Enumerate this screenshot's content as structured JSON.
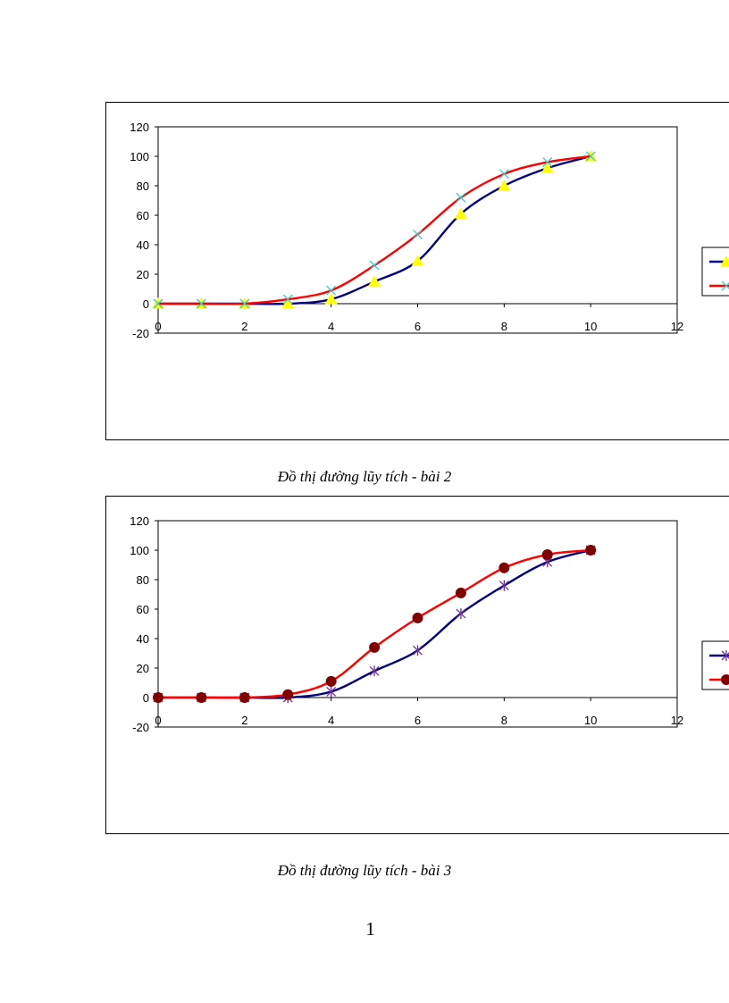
{
  "chart_data": [
    {
      "type": "line",
      "title": "",
      "caption": "Đồ thị đường lũy tích - bài 2",
      "xlabel": "",
      "ylabel": "",
      "xlim": [
        0,
        12
      ],
      "ylim": [
        -20,
        120
      ],
      "xticks": [
        "0",
        "2",
        "4",
        "6",
        "8",
        "10",
        "12"
      ],
      "yticks": [
        "-20",
        "0",
        "20",
        "40",
        "60",
        "80",
        "100",
        "120"
      ],
      "grid": false,
      "legend_position": "right (clipped)",
      "x": [
        0,
        1,
        2,
        3,
        4,
        5,
        6,
        7,
        8,
        9,
        10
      ],
      "series": [
        {
          "name": "",
          "color": "#000080",
          "marker": "triangle",
          "marker_color": "#ffff00",
          "values": [
            0,
            0,
            0,
            0,
            3,
            15,
            29,
            61,
            80,
            92,
            100
          ]
        },
        {
          "name": "",
          "color": "#ff0000",
          "marker": "x",
          "marker_color": "#33cccc",
          "values": [
            0,
            0,
            0,
            3,
            9,
            26,
            47,
            72,
            88,
            96,
            100
          ]
        }
      ]
    },
    {
      "type": "line",
      "title": "",
      "caption": "Đồ thị đường lũy tích - bài 3",
      "xlabel": "",
      "ylabel": "",
      "xlim": [
        0,
        12
      ],
      "ylim": [
        -20,
        120
      ],
      "xticks": [
        "0",
        "2",
        "4",
        "6",
        "8",
        "10",
        "12"
      ],
      "yticks": [
        "-20",
        "0",
        "20",
        "40",
        "60",
        "80",
        "100",
        "120"
      ],
      "grid": false,
      "legend_position": "right (clipped)",
      "x": [
        0,
        1,
        2,
        3,
        4,
        5,
        6,
        7,
        8,
        9,
        10
      ],
      "series": [
        {
          "name": "",
          "color": "#000080",
          "marker": "star",
          "marker_color": "#7030a0",
          "values": [
            0,
            0,
            0,
            0,
            4,
            18,
            32,
            57,
            76,
            92,
            100
          ]
        },
        {
          "name": "",
          "color": "#ff0000",
          "marker": "circle",
          "marker_color": "#800000",
          "values": [
            0,
            0,
            0,
            2,
            11,
            34,
            54,
            71,
            88,
            97,
            100
          ]
        }
      ]
    }
  ],
  "page": {
    "number": "1"
  }
}
